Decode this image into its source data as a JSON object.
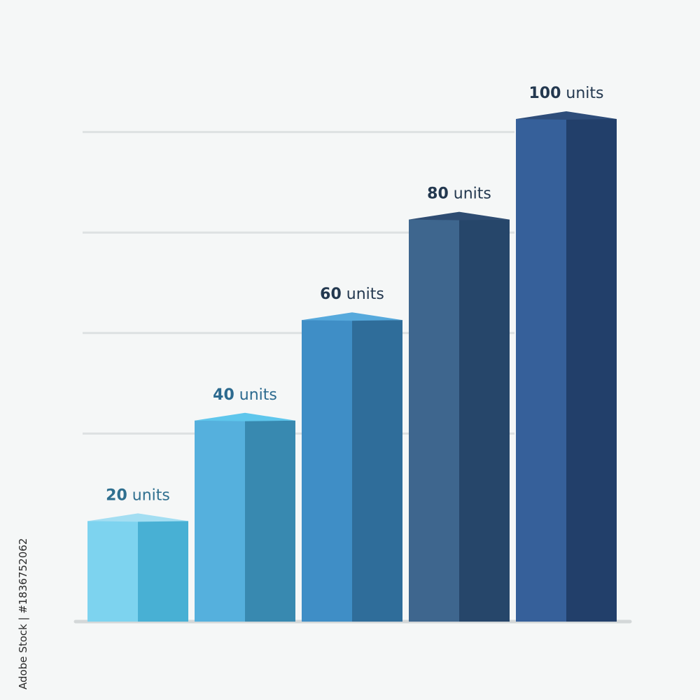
{
  "chart_data": {
    "type": "bar",
    "title": "",
    "xlabel": "",
    "ylabel": "",
    "categories": [
      "",
      "",
      "",
      "",
      ""
    ],
    "values": [
      20,
      40,
      60,
      80,
      100
    ],
    "data_labels": [
      {
        "num": "20",
        "unit": "units"
      },
      {
        "num": "40",
        "unit": "units"
      },
      {
        "num": "60",
        "unit": "units"
      },
      {
        "num": "80",
        "unit": "units"
      },
      {
        "num": "100",
        "unit": "units"
      }
    ],
    "ylim": [
      0,
      100
    ],
    "grid": true,
    "style": "3d-bars",
    "colors": {
      "front": [
        "#7dd3ef",
        "#55b0dd",
        "#3f8ec6",
        "#3e668e",
        "#36609a"
      ],
      "side": [
        "#48b0d4",
        "#3889b0",
        "#2f6d9a",
        "#26466a",
        "#223f6a"
      ],
      "top": [
        "#a3def2",
        "#5ec6ec",
        "#56a9dc",
        "#2e4c72",
        "#2e4d7a"
      ],
      "label": [
        "#2f6f8f",
        "#2c6a8f",
        "#23384f",
        "#23384f",
        "#23384f"
      ]
    }
  },
  "watermark": {
    "side_text": "Adobe Stock | #1836752062"
  }
}
